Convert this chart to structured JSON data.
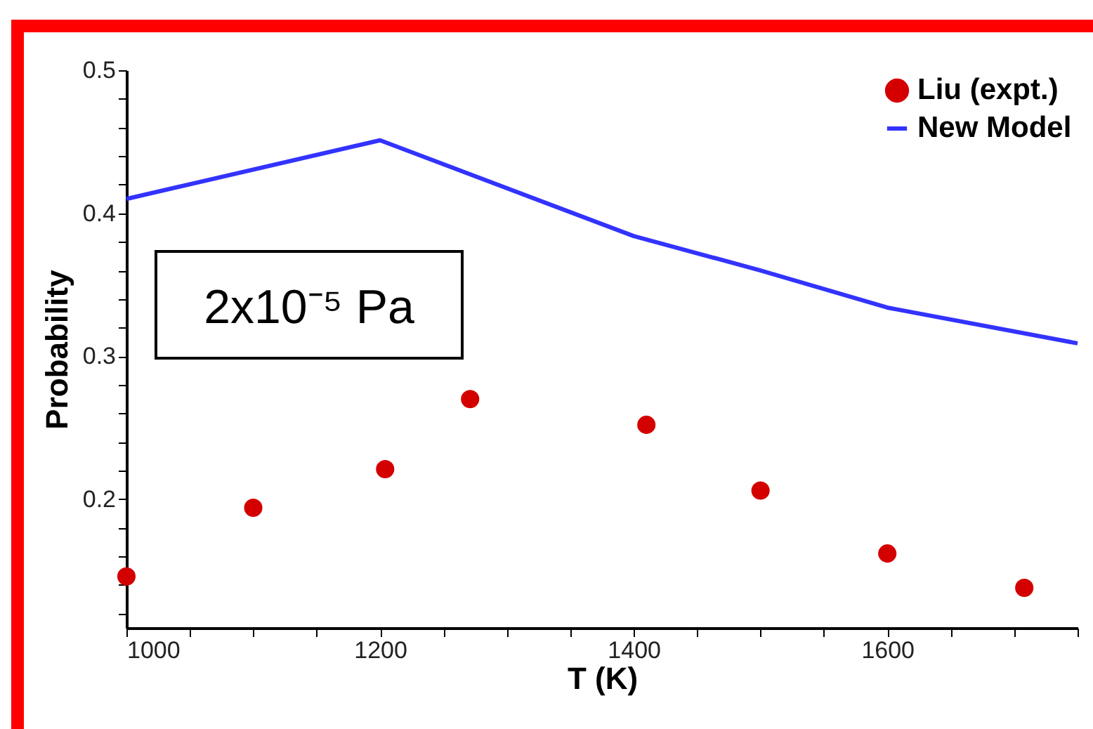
{
  "chart_data": {
    "type": "scatter",
    "xlabel": "T (K)",
    "ylabel": "Probability",
    "annotations": [
      "2x10⁻⁵ Pa"
    ],
    "xlim": [
      1000,
      1750
    ],
    "ylim": [
      0.11,
      0.5
    ],
    "xticks": [
      1000,
      {
        "value": 1050,
        "label": null
      },
      {
        "value": 1100,
        "label": null
      },
      {
        "value": 1150,
        "label": null
      },
      1200,
      {
        "value": 1250,
        "label": null
      },
      {
        "value": 1300,
        "label": null
      },
      {
        "value": 1350,
        "label": null
      },
      1400,
      {
        "value": 1450,
        "label": null
      },
      {
        "value": 1500,
        "label": null
      },
      {
        "value": 1550,
        "label": null
      },
      1600,
      {
        "value": 1650,
        "label": null
      },
      {
        "value": 1700,
        "label": null
      },
      {
        "value": 1750,
        "label": null
      }
    ],
    "yticks": [
      {
        "value": 0.12,
        "label": null
      },
      {
        "value": 0.14,
        "label": null
      },
      {
        "value": 0.16,
        "label": null
      },
      {
        "value": 0.18,
        "label": null
      },
      0.2,
      {
        "value": 0.22,
        "label": null
      },
      {
        "value": 0.24,
        "label": null
      },
      {
        "value": 0.26,
        "label": null
      },
      {
        "value": 0.28,
        "label": null
      },
      0.3,
      {
        "value": 0.32,
        "label": null
      },
      {
        "value": 0.34,
        "label": null
      },
      {
        "value": 0.36,
        "label": null
      },
      {
        "value": 0.38,
        "label": null
      },
      0.4,
      {
        "value": 0.42,
        "label": null
      },
      {
        "value": 0.44,
        "label": null
      },
      {
        "value": 0.46,
        "label": null
      },
      {
        "value": 0.48,
        "label": null
      },
      0.5
    ],
    "legend": "top right",
    "grid": false,
    "series": [
      {
        "name": "Liu (expt.)",
        "type": "scatter",
        "marker": "circle",
        "color": "#d40000",
        "x": [
          1000,
          1100,
          1204,
          1271,
          1410,
          1500,
          1600,
          1708
        ],
        "values": [
          0.146,
          0.194,
          0.221,
          0.27,
          0.252,
          0.206,
          0.162,
          0.138
        ]
      },
      {
        "name": "New Model",
        "type": "line",
        "marker": "none",
        "line_style": "solid",
        "color": "#3333ff",
        "x": [
          1000,
          1200,
          1400,
          1500,
          1600,
          1750
        ],
        "values": [
          0.41,
          0.451,
          0.384,
          0.36,
          0.334,
          0.309
        ]
      }
    ]
  }
}
